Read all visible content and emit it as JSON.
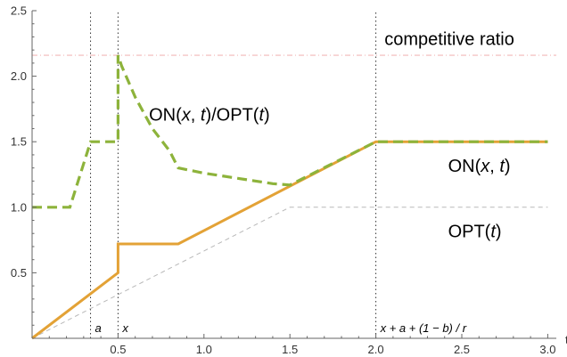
{
  "chart_data": {
    "type": "line",
    "title": "",
    "xlabel": "t",
    "ylabel": "",
    "xlim": [
      0,
      3.05
    ],
    "ylim": [
      0,
      2.5
    ],
    "grid": false,
    "x_ticks": [
      0.5,
      1.0,
      1.5,
      2.0,
      2.5,
      3.0
    ],
    "x_tick_labels": [
      "0.5",
      "1.0",
      "1.5",
      "2.0",
      "2.5",
      "3.0"
    ],
    "y_ticks": [
      0.5,
      1.0,
      1.5,
      2.0,
      2.5
    ],
    "y_tick_labels": [
      "0.5",
      "1.0",
      "1.5",
      "2.0",
      "2.5"
    ],
    "series": [
      {
        "name": "ON(x, t)/OPT(t)",
        "style": "dashed",
        "color": "#8DB33B",
        "x": [
          0,
          0.22,
          0.34,
          0.34,
          0.5,
          0.5,
          0.52,
          0.6,
          0.7,
          0.8,
          0.85,
          1.0,
          1.2,
          1.4,
          1.5,
          2.0,
          3.0
        ],
        "y": [
          1.0,
          1.0,
          1.5,
          1.5,
          1.5,
          2.16,
          2.08,
          1.84,
          1.6,
          1.43,
          1.3,
          1.26,
          1.22,
          1.18,
          1.17,
          1.5,
          1.5
        ]
      },
      {
        "name": "ON(x, t)",
        "style": "solid",
        "color": "#E3A236",
        "x": [
          0,
          0.5,
          0.5,
          0.52,
          0.85,
          2.0,
          3.0
        ],
        "y": [
          0,
          0.5,
          0.72,
          0.72,
          0.72,
          1.5,
          1.5
        ]
      },
      {
        "name": "OPT(t)",
        "style": "thin-dashed",
        "color": "#b8b8b8",
        "x": [
          0,
          1.5,
          3.0
        ],
        "y": [
          0,
          1.0,
          1.0
        ]
      }
    ],
    "reference_lines": [
      {
        "label": "competitive ratio",
        "orientation": "horizontal",
        "value": 2.16,
        "style": "dash-dot",
        "color": "#f2b8b8"
      },
      {
        "label": "a",
        "orientation": "vertical",
        "value": 0.34,
        "style": "dotted",
        "color": "#333333"
      },
      {
        "label": "x",
        "orientation": "vertical",
        "value": 0.5,
        "style": "dotted",
        "color": "#333333"
      },
      {
        "label": "x + a + (1 − b) / r",
        "orientation": "vertical",
        "value": 2.0,
        "style": "dotted",
        "color": "#333333"
      }
    ],
    "annotations": [
      {
        "text_parts": [
          "competitive ratio"
        ],
        "italic_parts": [],
        "x": 2.05,
        "y": 2.24
      },
      {
        "text_parts": [
          "ON(",
          "x",
          ", ",
          "t",
          ")/OPT(",
          "t",
          ")"
        ],
        "italic_parts": [
          1,
          3,
          5
        ],
        "x": 0.68,
        "y": 1.66
      },
      {
        "text_parts": [
          "ON(",
          "x",
          ", ",
          "t",
          ")"
        ],
        "italic_parts": [
          1,
          3
        ],
        "x": 2.42,
        "y": 1.27
      },
      {
        "text_parts": [
          "OPT(",
          "t",
          ")"
        ],
        "italic_parts": [
          1
        ],
        "x": 2.42,
        "y": 0.77
      }
    ],
    "axis_color": "#666666"
  }
}
